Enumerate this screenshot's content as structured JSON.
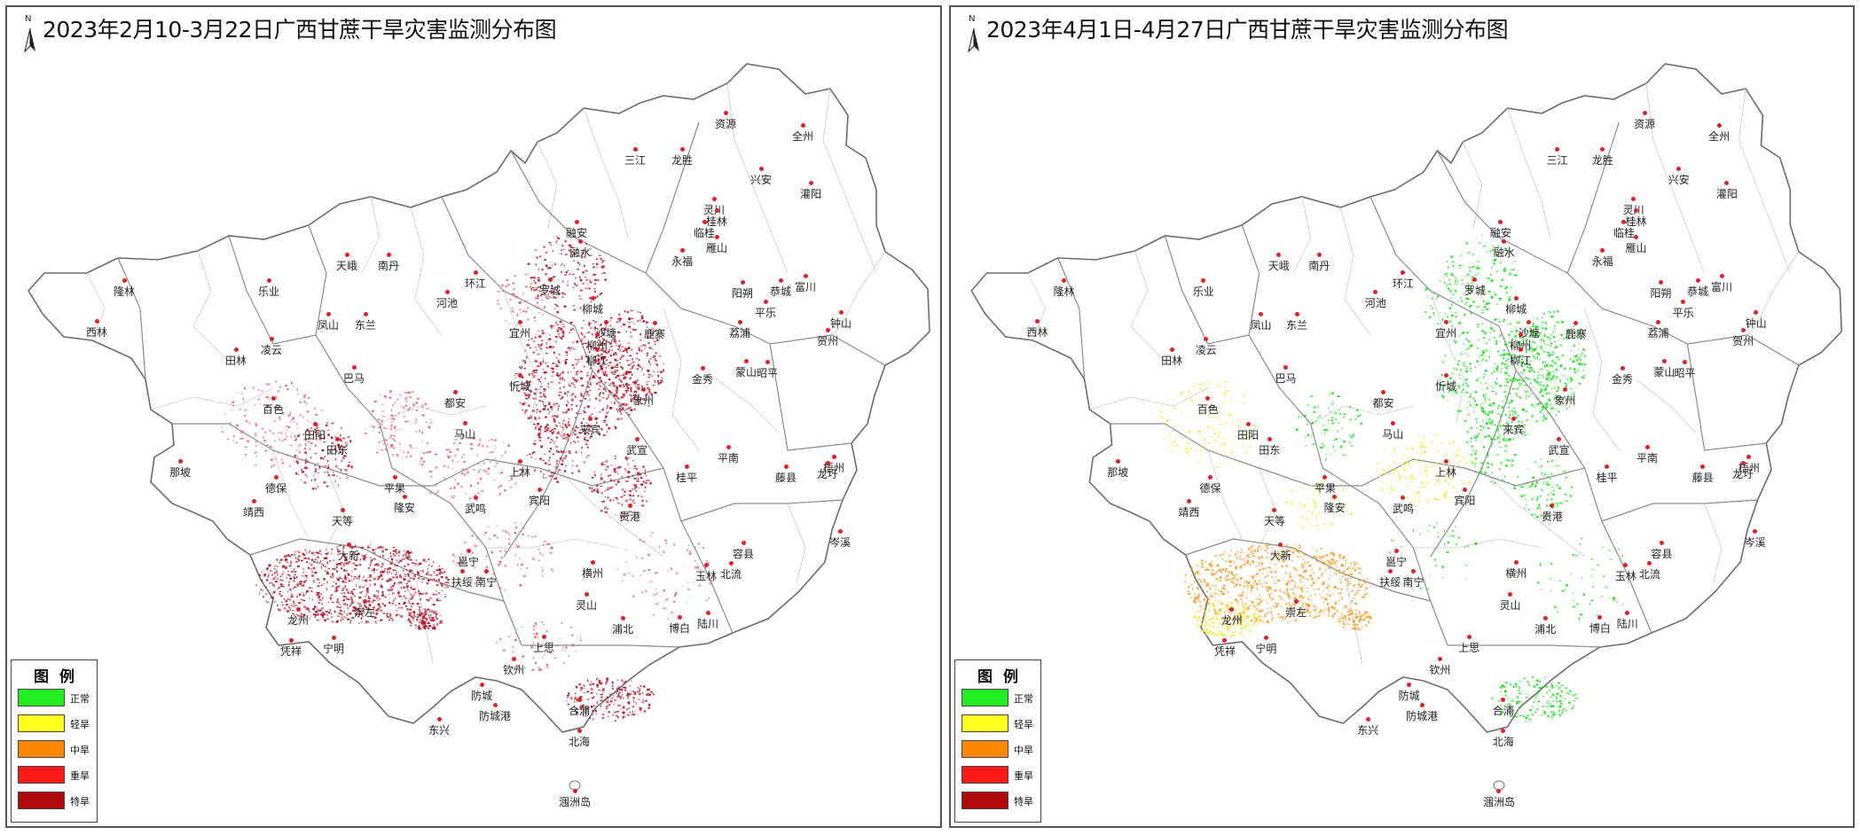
{
  "panels": [
    {
      "title": "2023年2月10-3月22日广西甘蔗干旱灾害监测分布图",
      "north_label": "N",
      "overlay_color": "#b0182a",
      "overlay_light": "#e06670",
      "labels": [
        {
          "t": "资源"
        },
        {
          "t": "全州"
        },
        {
          "t": "三江"
        },
        {
          "t": "龙胜"
        },
        {
          "t": "兴安"
        },
        {
          "t": "灌阳"
        },
        {
          "t": "灵川"
        },
        {
          "t": "桂林"
        },
        {
          "t": "临桂"
        },
        {
          "t": "雁山"
        },
        {
          "t": "融安"
        },
        {
          "t": "融水"
        },
        {
          "t": "永福"
        },
        {
          "t": "阳朔"
        },
        {
          "t": "恭城"
        },
        {
          "t": "富川"
        },
        {
          "t": "天峨"
        },
        {
          "t": "南丹"
        },
        {
          "t": "环江"
        },
        {
          "t": "罗城"
        },
        {
          "t": "柳城"
        },
        {
          "t": "平乐"
        },
        {
          "t": "钟山"
        },
        {
          "t": "隆林"
        },
        {
          "t": "乐业"
        },
        {
          "t": "凤山"
        },
        {
          "t": "东兰"
        },
        {
          "t": "河池"
        },
        {
          "t": "宜州"
        },
        {
          "t": "沙塘"
        },
        {
          "t": "鹿寨"
        },
        {
          "t": "荔浦"
        },
        {
          "t": "贺州"
        },
        {
          "t": "柳州"
        },
        {
          "t": "柳江"
        },
        {
          "t": "西林"
        },
        {
          "t": "田林"
        },
        {
          "t": "凌云"
        },
        {
          "t": "巴马"
        },
        {
          "t": "忻城"
        },
        {
          "t": "金秀"
        },
        {
          "t": "蒙山"
        },
        {
          "t": "昭平"
        },
        {
          "t": "象州"
        },
        {
          "t": "百色"
        },
        {
          "t": "都安"
        },
        {
          "t": "田阳"
        },
        {
          "t": "马山"
        },
        {
          "t": "来宾"
        },
        {
          "t": "田东"
        },
        {
          "t": "武宣"
        },
        {
          "t": "平南"
        },
        {
          "t": "那坡"
        },
        {
          "t": "上林"
        },
        {
          "t": "桂平"
        },
        {
          "t": "藤县"
        },
        {
          "t": "梧州"
        },
        {
          "t": "龙圩"
        },
        {
          "t": "德保"
        },
        {
          "t": "平果"
        },
        {
          "t": "靖西"
        },
        {
          "t": "隆安"
        },
        {
          "t": "宾阳"
        },
        {
          "t": "武鸣"
        },
        {
          "t": "贵港"
        },
        {
          "t": "天等"
        },
        {
          "t": "岑溪"
        },
        {
          "t": "容县"
        },
        {
          "t": "邕宁"
        },
        {
          "t": "大新"
        },
        {
          "t": "横州"
        },
        {
          "t": "扶绥"
        },
        {
          "t": "南宁"
        },
        {
          "t": "玉林"
        },
        {
          "t": "北流"
        },
        {
          "t": "灵山"
        },
        {
          "t": "龙州"
        },
        {
          "t": "崇左"
        },
        {
          "t": "浦北"
        },
        {
          "t": "博白"
        },
        {
          "t": "陆川"
        },
        {
          "t": "凭祥"
        },
        {
          "t": "宁明"
        },
        {
          "t": "上思"
        },
        {
          "t": "钦州"
        },
        {
          "t": "防城"
        },
        {
          "t": "防城港"
        },
        {
          "t": "合浦"
        },
        {
          "t": "东兴"
        },
        {
          "t": "北海"
        },
        {
          "t": "涠洲岛"
        }
      ]
    },
    {
      "title": "2023年4月1日-4月27日广西甘蔗干旱灾害监测分布图",
      "north_label": "N",
      "overlay_color": "#22dd22",
      "overlay_light": "#f0a030",
      "labels": [
        {
          "t": "资源"
        },
        {
          "t": "全州"
        },
        {
          "t": "三江"
        },
        {
          "t": "龙胜"
        },
        {
          "t": "兴安"
        },
        {
          "t": "灌阳"
        },
        {
          "t": "灵川"
        },
        {
          "t": "桂林"
        },
        {
          "t": "临桂"
        },
        {
          "t": "雁山"
        },
        {
          "t": "融安"
        },
        {
          "t": "融水"
        },
        {
          "t": "永福"
        },
        {
          "t": "阳朔"
        },
        {
          "t": "恭城"
        },
        {
          "t": "富川"
        },
        {
          "t": "天峨"
        },
        {
          "t": "南丹"
        },
        {
          "t": "环江"
        },
        {
          "t": "罗城"
        },
        {
          "t": "柳城"
        },
        {
          "t": "平乐"
        },
        {
          "t": "钟山"
        },
        {
          "t": "隆林"
        },
        {
          "t": "乐业"
        },
        {
          "t": "凤山"
        },
        {
          "t": "东兰"
        },
        {
          "t": "河池"
        },
        {
          "t": "宜州"
        },
        {
          "t": "沙塘"
        },
        {
          "t": "鹿寨"
        },
        {
          "t": "荔浦"
        },
        {
          "t": "贺州"
        },
        {
          "t": "柳州"
        },
        {
          "t": "柳江"
        },
        {
          "t": "西林"
        },
        {
          "t": "田林"
        },
        {
          "t": "凌云"
        },
        {
          "t": "巴马"
        },
        {
          "t": "忻城"
        },
        {
          "t": "金秀"
        },
        {
          "t": "蒙山"
        },
        {
          "t": "昭平"
        },
        {
          "t": "象州"
        },
        {
          "t": "百色"
        },
        {
          "t": "都安"
        },
        {
          "t": "田阳"
        },
        {
          "t": "马山"
        },
        {
          "t": "来宾"
        },
        {
          "t": "田东"
        },
        {
          "t": "武宣"
        },
        {
          "t": "平南"
        },
        {
          "t": "那坡"
        },
        {
          "t": "上林"
        },
        {
          "t": "桂平"
        },
        {
          "t": "藤县"
        },
        {
          "t": "梧州"
        },
        {
          "t": "龙圩"
        },
        {
          "t": "德保"
        },
        {
          "t": "平果"
        },
        {
          "t": "靖西"
        },
        {
          "t": "隆安"
        },
        {
          "t": "宾阳"
        },
        {
          "t": "武鸣"
        },
        {
          "t": "贵港"
        },
        {
          "t": "天等"
        },
        {
          "t": "岑溪"
        },
        {
          "t": "容县"
        },
        {
          "t": "邕宁"
        },
        {
          "t": "大新"
        },
        {
          "t": "横州"
        },
        {
          "t": "扶绥"
        },
        {
          "t": "南宁"
        },
        {
          "t": "玉林"
        },
        {
          "t": "北流"
        },
        {
          "t": "灵山"
        },
        {
          "t": "龙州"
        },
        {
          "t": "崇左"
        },
        {
          "t": "浦北"
        },
        {
          "t": "博白"
        },
        {
          "t": "陆川"
        },
        {
          "t": "凭祥"
        },
        {
          "t": "宁明"
        },
        {
          "t": "上思"
        },
        {
          "t": "钦州"
        },
        {
          "t": "防城"
        },
        {
          "t": "防城港"
        },
        {
          "t": "合浦"
        },
        {
          "t": "东兴"
        },
        {
          "t": "北海"
        },
        {
          "t": "涠洲岛"
        }
      ]
    }
  ],
  "legend": {
    "title": "图例",
    "items": [
      {
        "label": "正常",
        "color": "#22ee22"
      },
      {
        "label": "轻旱",
        "color": "#ffff22"
      },
      {
        "label": "中旱",
        "color": "#ff8800"
      },
      {
        "label": "重旱",
        "color": "#ff1a1a"
      },
      {
        "label": "特旱",
        "color": "#b00a0a"
      }
    ]
  }
}
